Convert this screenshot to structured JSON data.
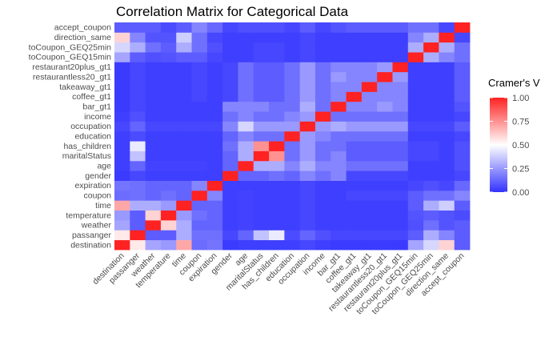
{
  "chart_data": {
    "type": "heatmap",
    "title": "Correlation Matrix for Categorical Data",
    "xlabel": "",
    "ylabel": "",
    "variables": [
      "destination",
      "passanger",
      "weather",
      "temperature",
      "time",
      "coupon",
      "expiration",
      "gender",
      "age",
      "maritalStatus",
      "has_children",
      "education",
      "occupation",
      "income",
      "bar_gt1",
      "coffee_gt1",
      "takeaway_gt1",
      "restaurantless20_gt1",
      "restaurant20plus_gt1",
      "toCoupon_GEQ15min",
      "toCoupon_GEQ25min",
      "direction_same",
      "accept_coupon"
    ],
    "values": [
      [
        1.0,
        0.55,
        0.28,
        0.25,
        0.7,
        0.14,
        0.16,
        0.02,
        0.03,
        0.03,
        0.03,
        0.03,
        0.05,
        0.03,
        0.02,
        0.02,
        0.02,
        0.02,
        0.02,
        0.28,
        0.4,
        0.6,
        0.1
      ],
      [
        0.55,
        1.0,
        0.1,
        0.1,
        0.3,
        0.15,
        0.15,
        0.05,
        0.12,
        0.35,
        0.45,
        0.06,
        0.12,
        0.07,
        0.05,
        0.05,
        0.05,
        0.05,
        0.05,
        0.1,
        0.3,
        0.2,
        0.1
      ],
      [
        0.28,
        0.1,
        1.0,
        0.6,
        0.3,
        0.12,
        0.12,
        0.03,
        0.04,
        0.03,
        0.03,
        0.03,
        0.05,
        0.03,
        0.03,
        0.03,
        0.03,
        0.03,
        0.03,
        0.07,
        0.15,
        0.08,
        0.1
      ],
      [
        0.25,
        0.1,
        0.6,
        1.0,
        0.25,
        0.15,
        0.12,
        0.03,
        0.04,
        0.03,
        0.03,
        0.03,
        0.05,
        0.03,
        0.03,
        0.03,
        0.03,
        0.03,
        0.03,
        0.08,
        0.1,
        0.08,
        0.06
      ],
      [
        0.7,
        0.3,
        0.3,
        0.25,
        1.0,
        0.12,
        0.12,
        0.03,
        0.04,
        0.03,
        0.03,
        0.03,
        0.05,
        0.03,
        0.03,
        0.03,
        0.03,
        0.03,
        0.03,
        0.1,
        0.3,
        0.38,
        0.1
      ],
      [
        0.14,
        0.15,
        0.12,
        0.15,
        0.12,
        1.0,
        0.2,
        0.03,
        0.04,
        0.03,
        0.03,
        0.03,
        0.05,
        0.03,
        0.03,
        0.05,
        0.05,
        0.05,
        0.05,
        0.1,
        0.15,
        0.15,
        0.2
      ],
      [
        0.16,
        0.15,
        0.12,
        0.12,
        0.12,
        0.2,
        1.0,
        0.03,
        0.03,
        0.03,
        0.03,
        0.03,
        0.05,
        0.03,
        0.03,
        0.03,
        0.03,
        0.03,
        0.03,
        0.05,
        0.07,
        0.05,
        0.13
      ],
      [
        0.02,
        0.05,
        0.03,
        0.03,
        0.03,
        0.03,
        0.03,
        1.0,
        0.12,
        0.12,
        0.15,
        0.12,
        0.2,
        0.15,
        0.2,
        0.05,
        0.05,
        0.05,
        0.05,
        0.03,
        0.03,
        0.03,
        0.05
      ],
      [
        0.03,
        0.12,
        0.04,
        0.04,
        0.04,
        0.04,
        0.03,
        0.12,
        1.0,
        0.3,
        0.3,
        0.2,
        0.3,
        0.2,
        0.2,
        0.15,
        0.15,
        0.15,
        0.15,
        0.03,
        0.03,
        0.03,
        0.07
      ],
      [
        0.03,
        0.35,
        0.03,
        0.03,
        0.03,
        0.03,
        0.03,
        0.12,
        0.3,
        1.0,
        0.75,
        0.15,
        0.25,
        0.15,
        0.2,
        0.1,
        0.1,
        0.1,
        0.1,
        0.05,
        0.05,
        0.03,
        0.07
      ],
      [
        0.03,
        0.45,
        0.03,
        0.03,
        0.03,
        0.03,
        0.03,
        0.15,
        0.3,
        0.75,
        1.0,
        0.15,
        0.25,
        0.15,
        0.15,
        0.1,
        0.1,
        0.1,
        0.1,
        0.05,
        0.05,
        0.03,
        0.07
      ],
      [
        0.03,
        0.06,
        0.03,
        0.03,
        0.03,
        0.03,
        0.03,
        0.12,
        0.2,
        0.15,
        0.15,
        1.0,
        0.25,
        0.2,
        0.15,
        0.15,
        0.15,
        0.15,
        0.15,
        0.03,
        0.03,
        0.03,
        0.05
      ],
      [
        0.05,
        0.12,
        0.05,
        0.05,
        0.05,
        0.05,
        0.05,
        0.2,
        0.4,
        0.25,
        0.25,
        0.25,
        1.0,
        0.25,
        0.3,
        0.25,
        0.25,
        0.25,
        0.25,
        0.05,
        0.05,
        0.05,
        0.1
      ],
      [
        0.03,
        0.07,
        0.03,
        0.03,
        0.03,
        0.03,
        0.03,
        0.15,
        0.2,
        0.15,
        0.15,
        0.2,
        0.25,
        1.0,
        0.15,
        0.15,
        0.15,
        0.15,
        0.15,
        0.03,
        0.03,
        0.03,
        0.05
      ],
      [
        0.02,
        0.05,
        0.03,
        0.03,
        0.03,
        0.03,
        0.03,
        0.2,
        0.2,
        0.2,
        0.15,
        0.15,
        0.3,
        0.15,
        1.0,
        0.2,
        0.2,
        0.25,
        0.2,
        0.03,
        0.03,
        0.03,
        0.08
      ],
      [
        0.02,
        0.05,
        0.03,
        0.03,
        0.03,
        0.05,
        0.03,
        0.05,
        0.15,
        0.1,
        0.1,
        0.15,
        0.25,
        0.15,
        0.2,
        1.0,
        0.2,
        0.2,
        0.2,
        0.03,
        0.03,
        0.03,
        0.1
      ],
      [
        0.02,
        0.05,
        0.03,
        0.03,
        0.03,
        0.05,
        0.03,
        0.05,
        0.15,
        0.1,
        0.1,
        0.15,
        0.25,
        0.15,
        0.2,
        0.2,
        1.0,
        0.2,
        0.2,
        0.03,
        0.03,
        0.03,
        0.1
      ],
      [
        0.02,
        0.05,
        0.03,
        0.03,
        0.03,
        0.05,
        0.03,
        0.05,
        0.15,
        0.1,
        0.1,
        0.15,
        0.25,
        0.15,
        0.25,
        0.2,
        0.2,
        1.0,
        0.25,
        0.03,
        0.03,
        0.03,
        0.1
      ],
      [
        0.02,
        0.05,
        0.03,
        0.03,
        0.03,
        0.05,
        0.03,
        0.05,
        0.15,
        0.1,
        0.1,
        0.15,
        0.25,
        0.15,
        0.2,
        0.2,
        0.2,
        0.25,
        1.0,
        0.03,
        0.03,
        0.03,
        0.1
      ],
      [
        0.28,
        0.1,
        0.07,
        0.08,
        0.1,
        0.1,
        0.05,
        0.03,
        0.03,
        0.05,
        0.05,
        0.03,
        0.05,
        0.03,
        0.03,
        0.03,
        0.03,
        0.03,
        0.03,
        1.0,
        0.3,
        0.2,
        0.15
      ],
      [
        0.4,
        0.3,
        0.15,
        0.1,
        0.3,
        0.15,
        0.07,
        0.03,
        0.03,
        0.05,
        0.05,
        0.03,
        0.05,
        0.03,
        0.03,
        0.03,
        0.03,
        0.03,
        0.03,
        0.3,
        1.0,
        0.3,
        0.15
      ],
      [
        0.6,
        0.2,
        0.08,
        0.08,
        0.38,
        0.15,
        0.05,
        0.03,
        0.03,
        0.03,
        0.03,
        0.03,
        0.05,
        0.03,
        0.03,
        0.03,
        0.03,
        0.03,
        0.03,
        0.2,
        0.3,
        1.0,
        0.05
      ],
      [
        0.1,
        0.1,
        0.1,
        0.06,
        0.1,
        0.2,
        0.13,
        0.05,
        0.07,
        0.07,
        0.07,
        0.05,
        0.1,
        0.05,
        0.08,
        0.1,
        0.1,
        0.1,
        0.1,
        0.15,
        0.15,
        0.05,
        1.0
      ]
    ],
    "color_scale": {
      "low": "#3333ff",
      "mid": "#ffffff",
      "high": "#ff2222",
      "midpoint": 0.5,
      "range": [
        0,
        1
      ]
    },
    "legend": {
      "title": "Cramer's V",
      "placement": "right",
      "tick_labels": [
        "1.00",
        "0.75",
        "0.50",
        "0.25",
        "0.00"
      ],
      "tick_values": [
        1.0,
        0.75,
        0.5,
        0.25,
        0.0
      ]
    },
    "grid": false
  }
}
